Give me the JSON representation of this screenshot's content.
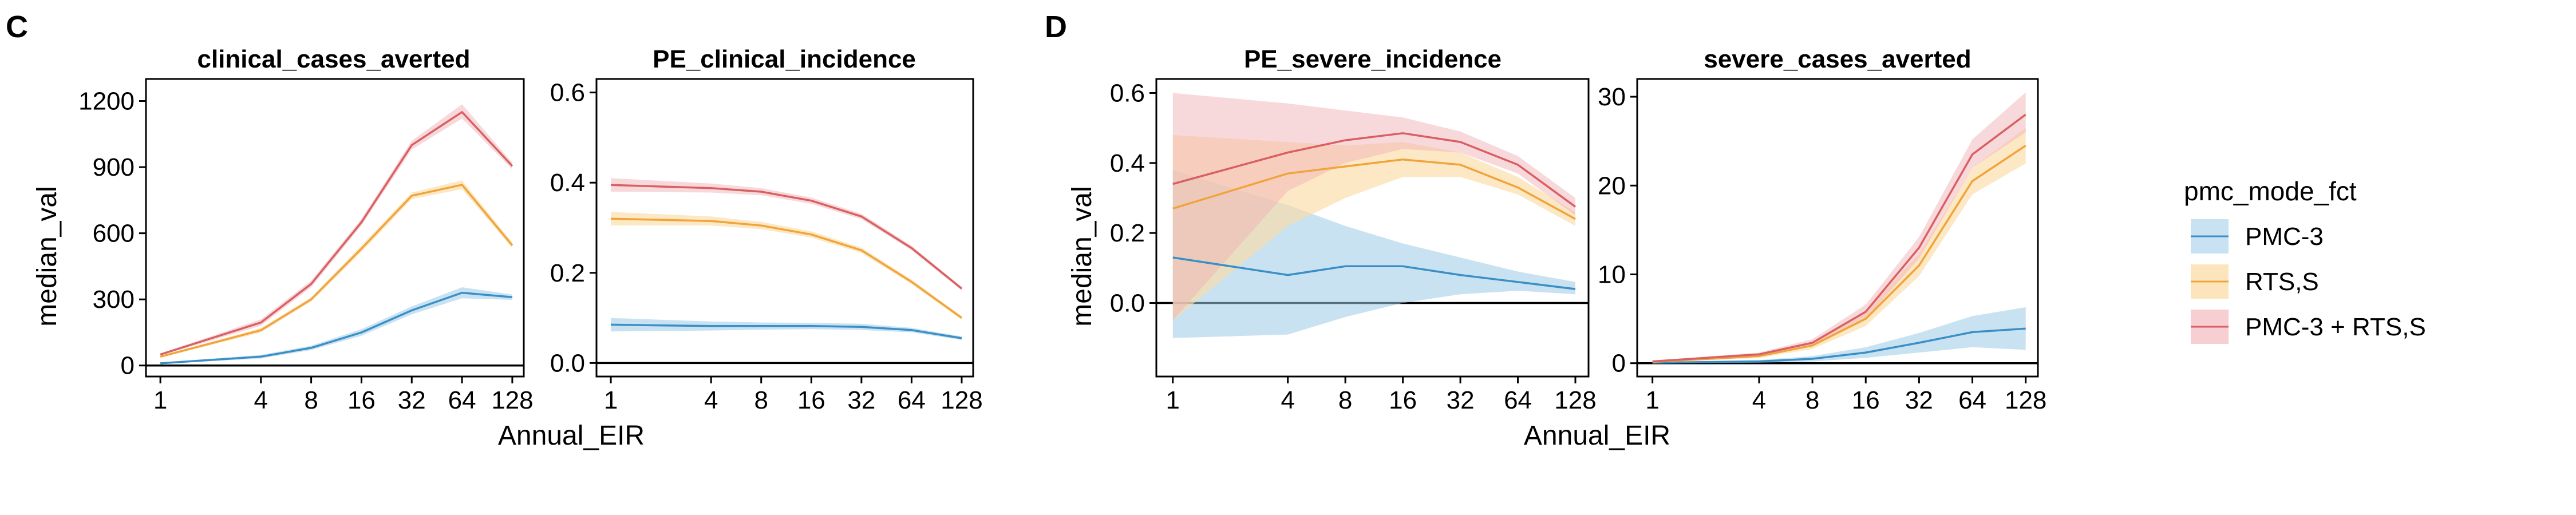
{
  "figure": {
    "panel_letters": [
      "C",
      "D"
    ],
    "legend": {
      "title": "pmc_mode_fct",
      "items": [
        {
          "label": "PMC-3",
          "color": "#3a8fc6",
          "fill": "#9ccbe8"
        },
        {
          "label": "RTS,S",
          "color": "#f0a43a",
          "fill": "#fbdca6"
        },
        {
          "label": "PMC-3 + RTS,S",
          "color": "#d95f63",
          "fill": "#f2b4b8"
        }
      ]
    },
    "groups": [
      {
        "letter": "C",
        "xlabel": "Annual_EIR",
        "ylabel": "median_val"
      },
      {
        "letter": "D",
        "xlabel": "Annual_EIR",
        "ylabel": "median_val"
      }
    ]
  },
  "chart_data": [
    {
      "type": "line",
      "title": "clinical_cases_averted",
      "xlabel": "Annual_EIR",
      "ylabel": "median_val",
      "x": [
        1,
        4,
        8,
        16,
        32,
        64,
        128
      ],
      "x_scale": "log2",
      "xlim": [
        0.82,
        150
      ],
      "ylim": [
        -50,
        1300
      ],
      "yticks": [
        0,
        300,
        600,
        900,
        1200
      ],
      "xticks": [
        1,
        4,
        8,
        16,
        32,
        64,
        128
      ],
      "hline": 0,
      "series": [
        {
          "name": "PMC-3",
          "values": [
            10,
            40,
            80,
            150,
            250,
            330,
            310
          ],
          "lower": [
            7,
            32,
            70,
            135,
            232,
            305,
            298
          ],
          "upper": [
            13,
            48,
            90,
            165,
            268,
            355,
            322
          ]
        },
        {
          "name": "RTS,S",
          "values": [
            40,
            160,
            300,
            530,
            770,
            820,
            545
          ],
          "lower": [
            36,
            150,
            290,
            515,
            755,
            800,
            532
          ],
          "upper": [
            44,
            170,
            310,
            545,
            785,
            840,
            558
          ]
        },
        {
          "name": "PMC-3 + RTS,S",
          "values": [
            50,
            195,
            370,
            650,
            1000,
            1150,
            905
          ],
          "lower": [
            45,
            180,
            355,
            635,
            980,
            1120,
            890
          ],
          "upper": [
            55,
            210,
            385,
            665,
            1020,
            1185,
            920
          ]
        }
      ]
    },
    {
      "type": "line",
      "title": "PE_clinical_incidence",
      "xlabel": "Annual_EIR",
      "ylabel": "",
      "x": [
        1,
        4,
        8,
        16,
        32,
        64,
        128
      ],
      "x_scale": "log2",
      "xlim": [
        0.82,
        150
      ],
      "ylim": [
        -0.03,
        0.63
      ],
      "yticks": [
        0.0,
        0.2,
        0.4,
        0.6
      ],
      "ytick_labels": [
        "0.0",
        "0.2",
        "0.4",
        "0.6"
      ],
      "xticks": [
        1,
        4,
        8,
        16,
        32,
        64,
        128
      ],
      "hline": 0,
      "series": [
        {
          "name": "PMC-3",
          "values": [
            0.085,
            0.082,
            0.082,
            0.082,
            0.08,
            0.073,
            0.055
          ],
          "lower": [
            0.07,
            0.072,
            0.074,
            0.075,
            0.073,
            0.068,
            0.051
          ],
          "upper": [
            0.1,
            0.092,
            0.09,
            0.089,
            0.087,
            0.078,
            0.059
          ]
        },
        {
          "name": "RTS,S",
          "values": [
            0.32,
            0.315,
            0.305,
            0.285,
            0.25,
            0.18,
            0.1
          ],
          "lower": [
            0.305,
            0.305,
            0.297,
            0.278,
            0.244,
            0.175,
            0.096
          ],
          "upper": [
            0.335,
            0.325,
            0.313,
            0.292,
            0.256,
            0.185,
            0.104
          ]
        },
        {
          "name": "PMC-3 + RTS,S",
          "values": [
            0.395,
            0.388,
            0.38,
            0.36,
            0.325,
            0.255,
            0.165
          ],
          "lower": [
            0.38,
            0.378,
            0.372,
            0.353,
            0.319,
            0.25,
            0.161
          ],
          "upper": [
            0.41,
            0.398,
            0.388,
            0.367,
            0.331,
            0.26,
            0.169
          ]
        }
      ]
    },
    {
      "type": "line",
      "title": "PE_severe_incidence",
      "xlabel": "Annual_EIR",
      "ylabel": "median_val",
      "x": [
        1,
        4,
        8,
        16,
        32,
        64,
        128
      ],
      "x_scale": "log2",
      "xlim": [
        0.82,
        150
      ],
      "ylim": [
        -0.21,
        0.64
      ],
      "yticks": [
        0.0,
        0.2,
        0.4,
        0.6
      ],
      "ytick_labels": [
        "0.0",
        "0.2",
        "0.4",
        "0.6"
      ],
      "xticks": [
        1,
        4,
        8,
        16,
        32,
        64,
        128
      ],
      "hline": 0,
      "series": [
        {
          "name": "PMC-3",
          "values": [
            0.13,
            0.08,
            0.105,
            0.105,
            0.08,
            0.06,
            0.04
          ],
          "lower": [
            -0.1,
            -0.09,
            -0.04,
            0.0,
            0.025,
            0.035,
            0.025
          ],
          "upper": [
            0.38,
            0.28,
            0.22,
            0.17,
            0.13,
            0.09,
            0.06
          ]
        },
        {
          "name": "RTS,S",
          "values": [
            0.27,
            0.37,
            0.39,
            0.41,
            0.395,
            0.33,
            0.24
          ],
          "lower": [
            -0.05,
            0.22,
            0.3,
            0.36,
            0.36,
            0.31,
            0.22
          ],
          "upper": [
            0.48,
            0.46,
            0.45,
            0.46,
            0.43,
            0.36,
            0.26
          ]
        },
        {
          "name": "PMC-3 + RTS,S",
          "values": [
            0.34,
            0.43,
            0.465,
            0.485,
            0.46,
            0.395,
            0.275
          ],
          "lower": [
            -0.05,
            0.32,
            0.4,
            0.44,
            0.43,
            0.37,
            0.25
          ],
          "upper": [
            0.6,
            0.57,
            0.55,
            0.53,
            0.49,
            0.42,
            0.3
          ]
        }
      ]
    },
    {
      "type": "line",
      "title": "severe_cases_averted",
      "xlabel": "Annual_EIR",
      "ylabel": "",
      "x": [
        1,
        4,
        8,
        16,
        32,
        64,
        128
      ],
      "x_scale": "log2",
      "xlim": [
        0.82,
        150
      ],
      "ylim": [
        -1.5,
        32
      ],
      "yticks": [
        0,
        10,
        20,
        30
      ],
      "xticks": [
        1,
        4,
        8,
        16,
        32,
        64,
        128
      ],
      "hline": 0,
      "series": [
        {
          "name": "PMC-3",
          "values": [
            0.05,
            0.2,
            0.5,
            1.2,
            2.3,
            3.5,
            3.9
          ],
          "lower": [
            0.0,
            0.05,
            0.2,
            0.6,
            1.2,
            1.8,
            1.5
          ],
          "upper": [
            0.15,
            0.35,
            0.8,
            1.8,
            3.4,
            5.3,
            6.3
          ]
        },
        {
          "name": "RTS,S",
          "values": [
            0.15,
            0.8,
            2.0,
            5.0,
            11.0,
            20.5,
            24.5
          ],
          "lower": [
            0.05,
            0.6,
            1.6,
            4.2,
            9.8,
            19.0,
            22.5
          ],
          "upper": [
            0.25,
            1.0,
            2.4,
            5.8,
            12.3,
            22.0,
            26.5
          ]
        },
        {
          "name": "PMC-3 + RTS,S",
          "values": [
            0.2,
            1.0,
            2.3,
            5.8,
            13.0,
            23.5,
            28.0
          ],
          "lower": [
            0.1,
            0.8,
            1.9,
            5.0,
            11.8,
            22.0,
            26.0
          ],
          "upper": [
            0.3,
            1.2,
            2.7,
            6.6,
            14.2,
            25.2,
            30.5
          ]
        }
      ]
    }
  ]
}
